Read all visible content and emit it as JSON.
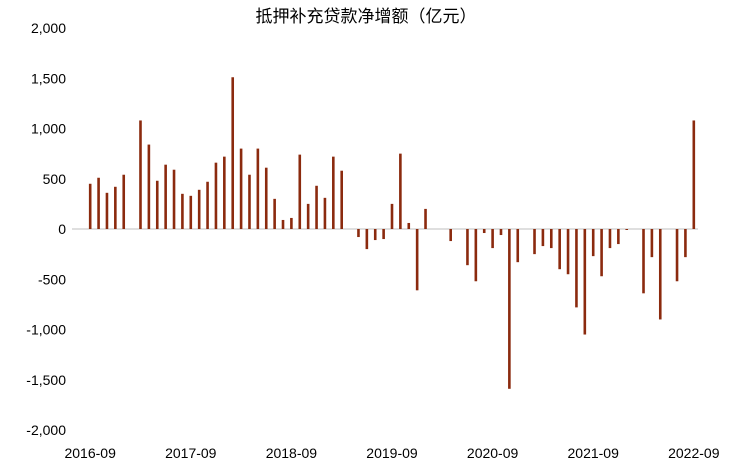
{
  "chart_data": {
    "type": "bar",
    "title": "抵押补充贷款净增额（亿元）",
    "xlabel": "",
    "ylabel": "",
    "ylim": [
      -2000,
      2000
    ],
    "yticks": [
      -2000,
      -1500,
      -1000,
      -500,
      0,
      500,
      1000,
      1500,
      2000
    ],
    "ytick_labels": [
      "-2,000",
      "-1,500",
      "-1,000",
      "-500",
      "0",
      "500",
      "1,000",
      "1,500",
      "2,000"
    ],
    "xtick_labels": [
      "2016-09",
      "2017-09",
      "2018-09",
      "2019-09",
      "2020-09",
      "2021-09",
      "2022-09"
    ],
    "categories": [
      "2016-09",
      "2016-10",
      "2016-11",
      "2016-12",
      "2017-01",
      "2017-02",
      "2017-03",
      "2017-04",
      "2017-05",
      "2017-06",
      "2017-07",
      "2017-08",
      "2017-09",
      "2017-10",
      "2017-11",
      "2017-12",
      "2018-01",
      "2018-02",
      "2018-03",
      "2018-04",
      "2018-05",
      "2018-06",
      "2018-07",
      "2018-08",
      "2018-09",
      "2018-10",
      "2018-11",
      "2018-12",
      "2019-01",
      "2019-02",
      "2019-03",
      "2019-04",
      "2019-05",
      "2019-06",
      "2019-07",
      "2019-08",
      "2019-09",
      "2019-10",
      "2019-11",
      "2019-12",
      "2020-01",
      "2020-02",
      "2020-03",
      "2020-04",
      "2020-05",
      "2020-06",
      "2020-07",
      "2020-08",
      "2020-09",
      "2020-10",
      "2020-11",
      "2020-12",
      "2021-01",
      "2021-02",
      "2021-03",
      "2021-04",
      "2021-05",
      "2021-06",
      "2021-07",
      "2021-08",
      "2021-09",
      "2021-10",
      "2021-11",
      "2021-12",
      "2022-01",
      "2022-02",
      "2022-03",
      "2022-04",
      "2022-05",
      "2022-06",
      "2022-07",
      "2022-08",
      "2022-09"
    ],
    "values": [
      450,
      510,
      360,
      420,
      540,
      0,
      1080,
      840,
      480,
      640,
      590,
      350,
      330,
      390,
      470,
      660,
      720,
      1510,
      800,
      540,
      800,
      610,
      300,
      90,
      110,
      740,
      250,
      430,
      310,
      720,
      580,
      0,
      -80,
      -200,
      -110,
      -100,
      250,
      750,
      60,
      -610,
      200,
      0,
      0,
      -120,
      0,
      -360,
      -520,
      -40,
      -190,
      -60,
      -1590,
      -330,
      0,
      -250,
      -170,
      -190,
      -400,
      -450,
      -780,
      -1050,
      -270,
      -470,
      -190,
      -150,
      -10,
      0,
      -640,
      -280,
      -900,
      0,
      -520,
      -280,
      1080
    ],
    "bar_color": "#8B2A0E",
    "grid": false
  }
}
